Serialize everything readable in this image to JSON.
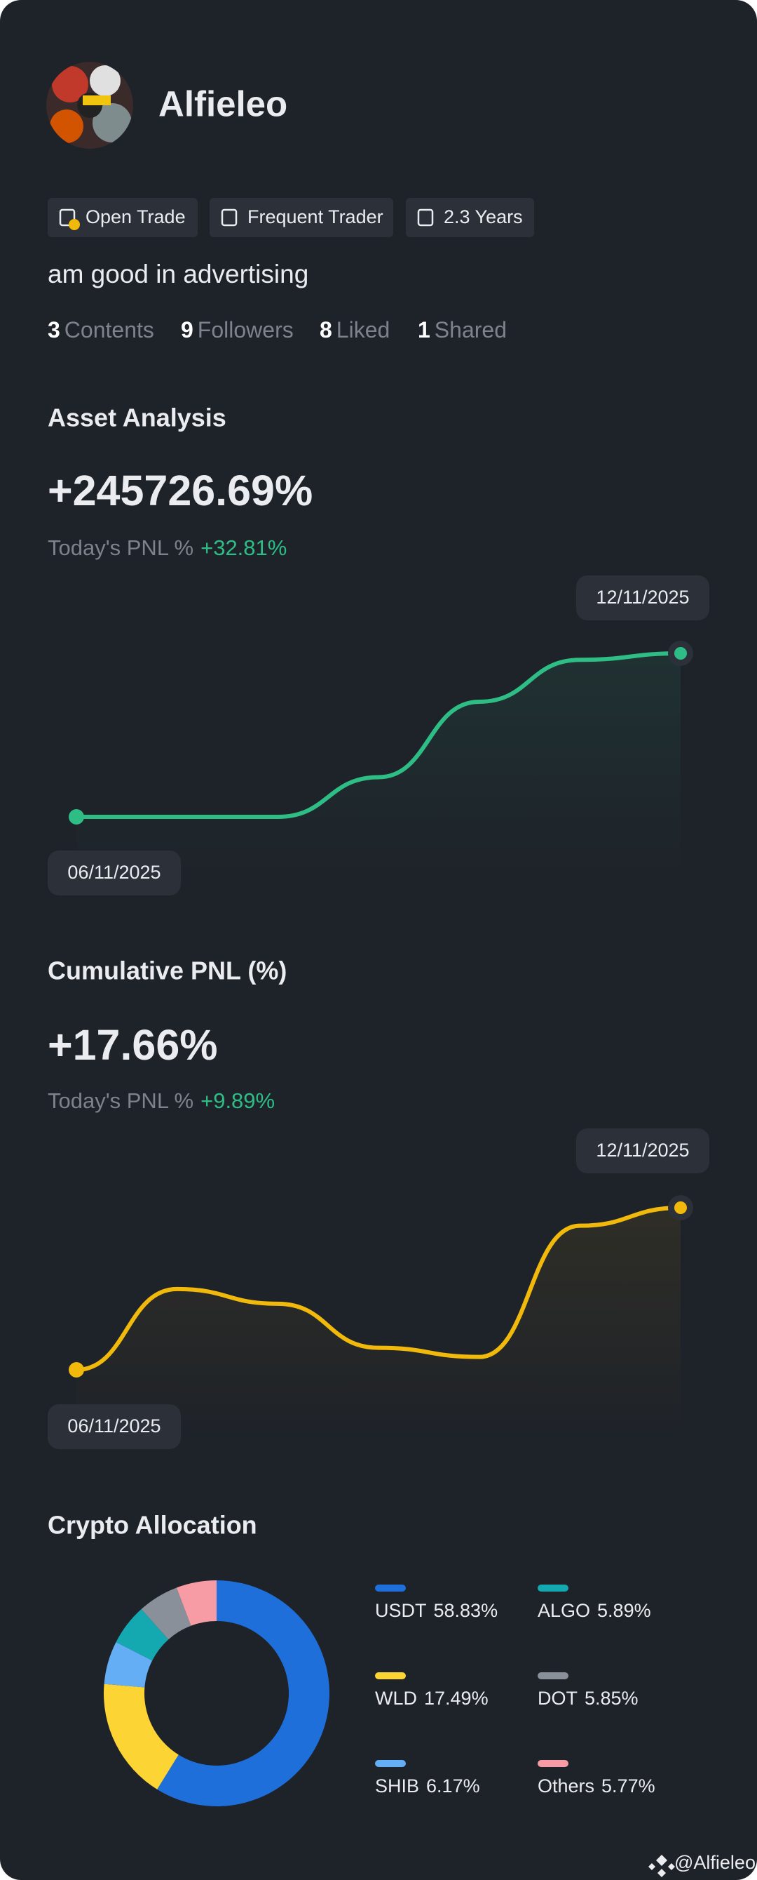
{
  "profile": {
    "name": "Alfieleo",
    "badges": [
      "Open Trade",
      "Frequent Trader",
      "2.3 Years"
    ],
    "bio": "am good in advertising",
    "stats": [
      {
        "count": 3,
        "label": "Contents"
      },
      {
        "count": 9,
        "label": "Followers"
      },
      {
        "count": 8,
        "label": "Liked"
      },
      {
        "count": 1,
        "label": "Shared"
      }
    ]
  },
  "chart_data": [
    {
      "type": "line",
      "title": "Asset Analysis",
      "headline": "+245726.69%",
      "pnl_label": "Today's PNL %",
      "pnl_value": "+32.81%",
      "categories": [
        "06/11/2025",
        null,
        null,
        null,
        null,
        null,
        "12/11/2025"
      ],
      "values": [
        0,
        0,
        0,
        59600,
        173000,
        236000,
        245726.69
      ],
      "color": "#2ebd85"
    },
    {
      "type": "line",
      "title": "Cumulative PNL (%)",
      "headline": "+17.66%",
      "pnl_label": "Today's PNL %",
      "pnl_value": "+9.89%",
      "categories": [
        "06/11/2025",
        null,
        null,
        null,
        null,
        null,
        "12/11/2025"
      ],
      "values": [
        0,
        8.8,
        7.2,
        2.4,
        1.4,
        15.7,
        17.66
      ],
      "color": "#f0b90b"
    },
    {
      "type": "pie",
      "title": "Crypto Allocation",
      "categories": [
        "USDT",
        "WLD",
        "SHIB",
        "ALGO",
        "DOT",
        "Others"
      ],
      "values": [
        58.83,
        17.49,
        6.17,
        5.89,
        5.85,
        5.77
      ],
      "value_labels": [
        "58.83%",
        "17.49%",
        "6.17%",
        "5.89%",
        "5.85%",
        "5.77%"
      ],
      "colors": [
        "#1e6fd9",
        "#fcd535",
        "#64aef5",
        "#14a8b0",
        "#8a9099",
        "#f79ca5"
      ]
    }
  ],
  "watermark": "@Alfieleo"
}
